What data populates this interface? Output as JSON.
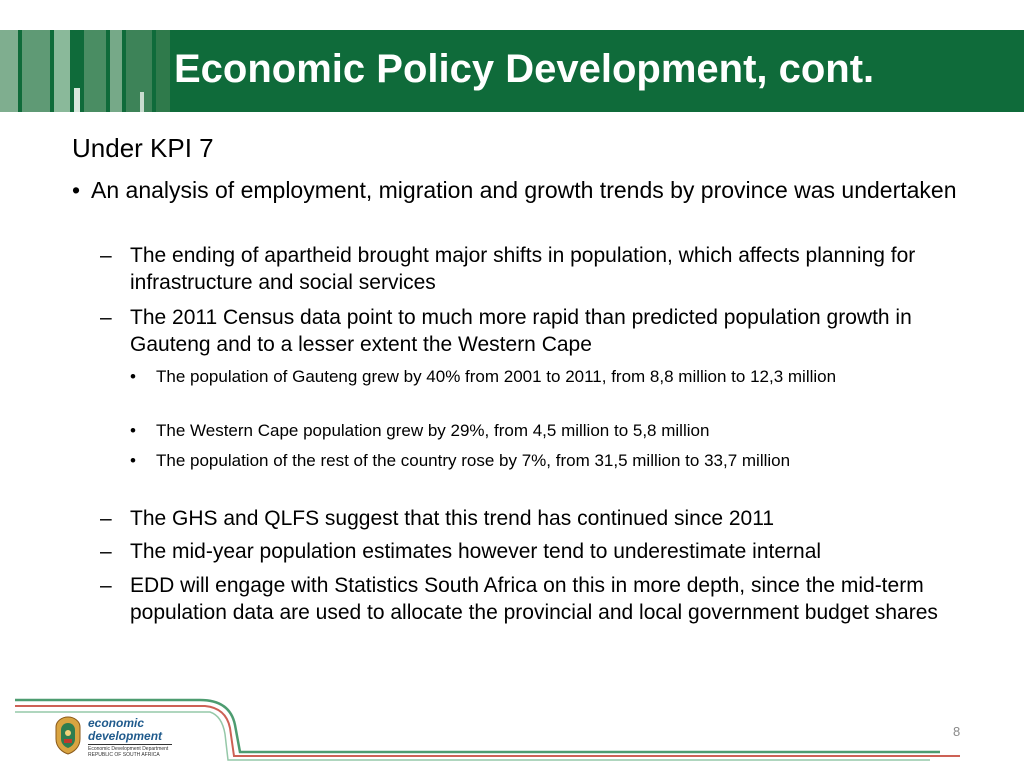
{
  "slide": {
    "title": "Economic Policy Development, cont.",
    "kpi_heading": "Under KPI 7",
    "bullet1": "An analysis of employment, migration and growth trends by province was undertaken",
    "sub1": "The ending of apartheid brought major shifts in population, which affects planning for infrastructure and social services",
    "sub2": "The 2011 Census data point to much more rapid than predicted population growth in Gauteng and to a lesser extent the Western Cape",
    "subsub1": "The population of Gauteng grew by 40% from 2001 to 2011, from 8,8 million to 12,3 million",
    "subsub2": "The Western Cape population grew by 29%, from 4,5 million to 5,8 million",
    "subsub3": "The population of the rest of the country rose by 7%, from 31,5 million to 33,7 million",
    "sub3": "The GHS and QLFS suggest that this trend has continued since 2011",
    "sub4": "The mid-year population estimates however tend to underestimate internal",
    "sub5": "EDD will engage with Statistics South Africa on this in more depth, since the mid-term population data are used to allocate the provincial and local government budget shares",
    "bullet_dot": "•",
    "dash": "–",
    "page_number": "8"
  },
  "footer": {
    "logo_word1": "economic",
    "logo_word2": "development",
    "logo_sub1": "Economic Development Department",
    "logo_sub2": "REPUBLIC OF SOUTH AFRICA"
  },
  "colors": {
    "header_green": "#0f6b3a",
    "line_green": "#2e8b57",
    "line_red": "#c0392b",
    "logo_blue": "#1f5a8c"
  }
}
